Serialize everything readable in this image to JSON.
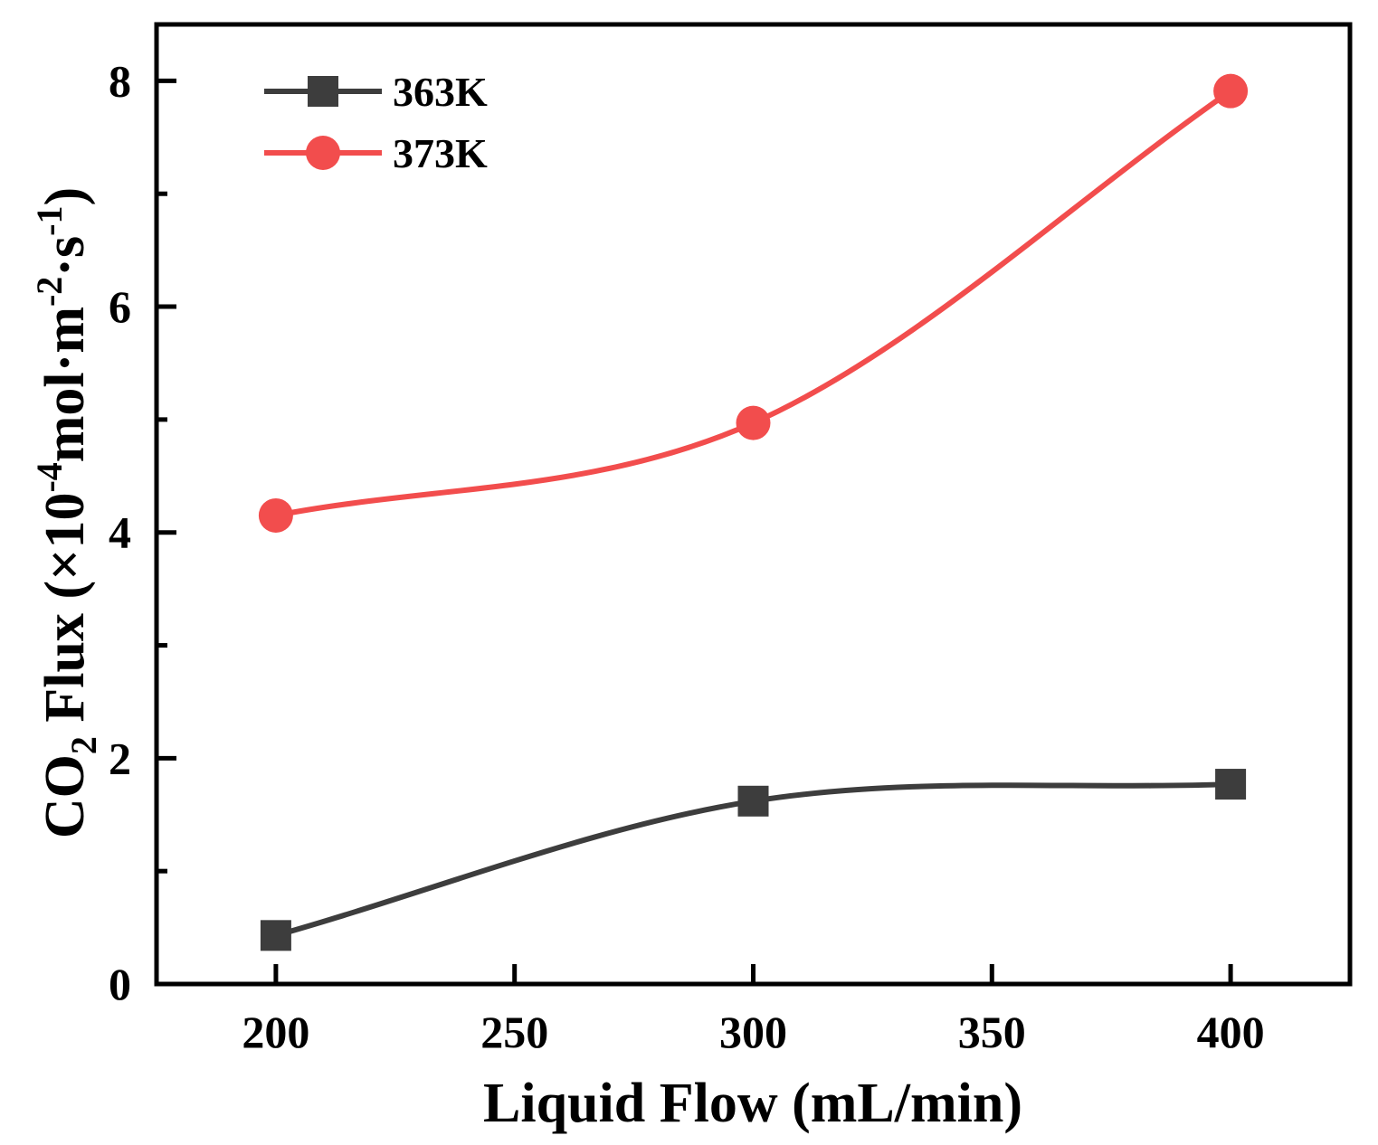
{
  "chart_data": {
    "type": "line",
    "title": "",
    "xlabel": "Liquid Flow (mL/min)",
    "ylabel": {
      "lead": "CO",
      "sub": "2",
      "mid1": " Flux (×10",
      "sup1": "-4",
      "mid2": "mol·m",
      "sup2": "-2",
      "mid3": "·s",
      "sup3": "-1",
      "tail": ")"
    },
    "xlim": [
      175,
      425
    ],
    "ylim": [
      0,
      8.5
    ],
    "xticks": [
      200,
      250,
      300,
      350,
      400
    ],
    "yticks": [
      0,
      2,
      4,
      6,
      8
    ],
    "yminor": [
      1,
      3,
      5,
      7
    ],
    "x": [
      200,
      300,
      400
    ],
    "series": [
      {
        "name": "363K",
        "color": "#3d3d3d",
        "marker": "square",
        "values": [
          0.43,
          1.62,
          1.77
        ]
      },
      {
        "name": "373K",
        "color": "#f24d4d",
        "marker": "circle",
        "values": [
          4.15,
          4.97,
          7.91
        ]
      }
    ],
    "legend_position": "top-left"
  }
}
